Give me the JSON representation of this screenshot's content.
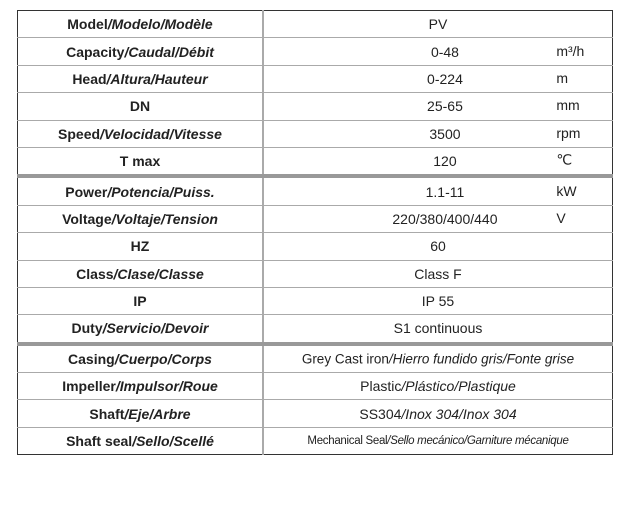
{
  "rows": [
    {
      "label": "Model",
      "label_it": "/Modelo/Modèle",
      "value": "PV",
      "unit": ""
    },
    {
      "label": "Capacity",
      "label_it": "/Caudal/Débit",
      "value": "0-48",
      "unit": "m³/h"
    },
    {
      "label": "Head",
      "label_it": "/Altura/Hauteur",
      "value": "0-224",
      "unit": "m"
    },
    {
      "label": "DN",
      "label_it": "",
      "value": "25-65",
      "unit": "mm"
    },
    {
      "label": "Speed",
      "label_it": "/Velocidad/Vitesse",
      "value": "3500",
      "unit": "rpm"
    },
    {
      "label": "T max",
      "label_it": "",
      "value": "120",
      "unit": "℃"
    },
    {
      "label": "Power",
      "label_it": "/Potencia/Puiss.",
      "value": "1.1-11",
      "unit": "kW"
    },
    {
      "label": "Voltage",
      "label_it": "/Voltaje/Tension",
      "value": "220/380/400/440",
      "unit": "V"
    },
    {
      "label": "HZ",
      "label_it": "",
      "value": "60",
      "unit": ""
    },
    {
      "label": "Class",
      "label_it": "/Clase/Classe",
      "value": "Class F",
      "unit": ""
    },
    {
      "label": "IP",
      "label_it": "",
      "value": "IP 55",
      "unit": ""
    },
    {
      "label": "Duty",
      "label_it": "/Servicio/Devoir",
      "value": "S1 continuous",
      "unit": ""
    },
    {
      "label": "Casing",
      "label_it": "/Cuerpo/Corps",
      "value": "Grey Cast iron",
      "value_it": "/Hierro fundido gris/Fonte grise",
      "unit": ""
    },
    {
      "label": "Impeller",
      "label_it": "/Impulsor/Roue",
      "value": "Plastic",
      "value_it": "/Plástico/Plastique",
      "unit": ""
    },
    {
      "label": "Shaft",
      "label_it": "/Eje/Arbre",
      "value": "SS304",
      "value_it": "/Inox 304/Inox 304",
      "unit": ""
    },
    {
      "label": "Shaft seal",
      "label_it": "/Sello/Scellé",
      "value": "Mechanical Seal",
      "value_it": "/Sello mecánico/Garniture mécanique",
      "unit": ""
    }
  ]
}
